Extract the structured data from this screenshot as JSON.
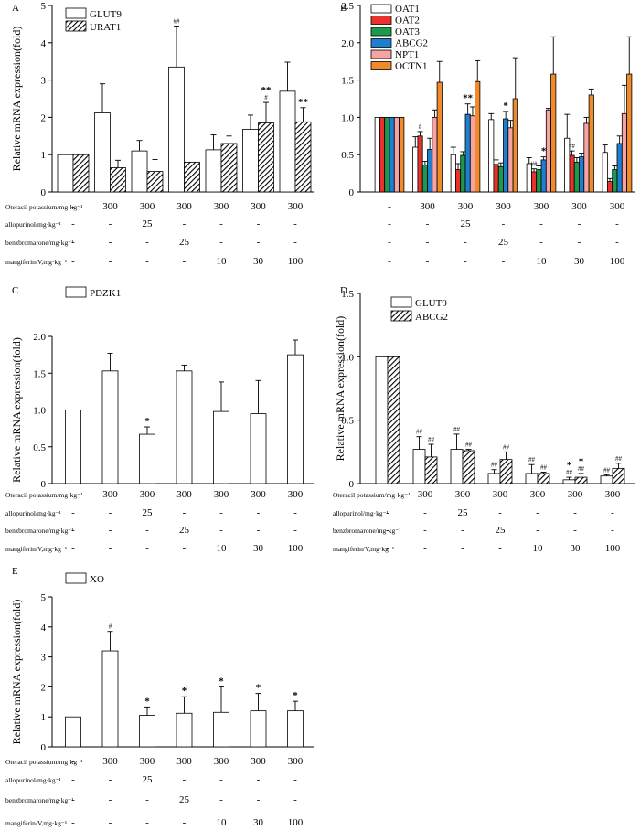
{
  "chart_data": [
    {
      "panel": "A",
      "type": "bar",
      "ylabel": "Relative mRNA expression(fold)",
      "ylim": [
        0,
        5
      ],
      "yticks": [
        "0",
        "1",
        "2",
        "3",
        "4",
        "5"
      ],
      "legend": "top-left",
      "series": [
        {
          "name": "GLUT9",
          "pattern": "open",
          "values": [
            1.0,
            2.12,
            1.1,
            3.35,
            1.13,
            1.68,
            2.7
          ],
          "errors": [
            0,
            0.78,
            0.28,
            1.1,
            0.4,
            0.38,
            0.78
          ],
          "marks": [
            "",
            "",
            "",
            "##",
            "",
            "",
            ""
          ]
        },
        {
          "name": "URAT1",
          "pattern": "hatched",
          "values": [
            1.0,
            0.65,
            0.55,
            0.8,
            1.3,
            1.85,
            1.88
          ],
          "errors": [
            0,
            0.2,
            0.32,
            0,
            0.2,
            0.55,
            0.38
          ],
          "marks": [
            "",
            "",
            "",
            "",
            "",
            "**\n#",
            "**"
          ]
        }
      ],
      "dose_rows": [
        {
          "label": "Oteracil potassium/mg·kg⁻¹",
          "values": [
            "-",
            "300",
            "300",
            "300",
            "300",
            "300",
            "300"
          ]
        },
        {
          "label": "allopurinol/mg·kg⁻¹",
          "values": [
            "-",
            "-",
            "25",
            "-",
            "-",
            "-",
            "-"
          ]
        },
        {
          "label": "benzbromarone/mg·kg⁻¹",
          "values": [
            "-",
            "-",
            "-",
            "25",
            "-",
            "-",
            "-"
          ]
        },
        {
          "label": "mangiferin/V,mg·kg⁻¹",
          "values": [
            "-",
            "-",
            "-",
            "-",
            "10",
            "30",
            "100"
          ]
        }
      ]
    },
    {
      "panel": "B",
      "type": "bar",
      "ylabel": "",
      "ylim": [
        0,
        2.5
      ],
      "yticks": [
        "0",
        "0.5",
        "1.0",
        "1.5",
        "2.0",
        "2.5"
      ],
      "legend": "top-left",
      "series": [
        {
          "name": "OAT1",
          "color": "#ffffff",
          "values": [
            1.0,
            0.6,
            0.5,
            0.97,
            0.38,
            0.72,
            0.53
          ],
          "errors": [
            0,
            0.14,
            0.1,
            0.08,
            0.08,
            0.32,
            0.1
          ],
          "marks": [
            "",
            "",
            "",
            "",
            "",
            "",
            ""
          ]
        },
        {
          "name": "OAT2",
          "color": "#e8322b",
          "values": [
            1.0,
            0.75,
            0.3,
            0.37,
            0.27,
            0.49,
            0.14
          ],
          "errors": [
            0,
            0.06,
            0.08,
            0.06,
            0.04,
            0.06,
            0.04
          ],
          "marks": [
            "",
            "#",
            "",
            "",
            "##",
            "##",
            ""
          ]
        },
        {
          "name": "OAT3",
          "color": "#1a9a4a",
          "values": [
            1.0,
            0.36,
            0.49,
            0.34,
            0.3,
            0.4,
            0.3
          ],
          "errors": [
            0,
            0.05,
            0.05,
            0.05,
            0.05,
            0.06,
            0.05
          ],
          "marks": [
            "",
            "",
            "",
            "",
            "",
            "",
            ""
          ]
        },
        {
          "name": "ABCG2",
          "color": "#1e7fcf",
          "values": [
            1.0,
            0.57,
            1.04,
            0.98,
            0.43,
            0.47,
            0.65
          ],
          "errors": [
            0,
            0.15,
            0.14,
            0.1,
            0.04,
            0.05,
            0.1
          ],
          "marks": [
            "",
            "",
            "**",
            "*",
            "*",
            "",
            ""
          ]
        },
        {
          "name": "NPT1",
          "color": "#f4a4a4",
          "values": [
            1.0,
            1.0,
            1.02,
            0.86,
            1.1,
            0.92,
            1.05
          ],
          "errors": [
            0,
            0.1,
            0.12,
            0.1,
            0.02,
            0.08,
            0.38
          ],
          "marks": [
            "",
            "",
            "",
            "",
            "",
            "",
            ""
          ]
        },
        {
          "name": "OCTN1",
          "color": "#f08a2a",
          "values": [
            1.0,
            1.47,
            1.48,
            1.25,
            1.58,
            1.3,
            1.58
          ],
          "errors": [
            0,
            0.28,
            0.28,
            0.55,
            0.5,
            0.08,
            0.5
          ],
          "marks": [
            "",
            "",
            "",
            "",
            "",
            "",
            ""
          ]
        }
      ],
      "dose_rows": [
        {
          "label": "",
          "values": [
            "-",
            "300",
            "300",
            "300",
            "300",
            "300",
            "300"
          ]
        },
        {
          "label": "",
          "values": [
            "-",
            "-",
            "25",
            "-",
            "-",
            "-",
            "-"
          ]
        },
        {
          "label": "",
          "values": [
            "-",
            "-",
            "-",
            "25",
            "-",
            "-",
            "-"
          ]
        },
        {
          "label": "",
          "values": [
            "-",
            "-",
            "-",
            "-",
            "10",
            "30",
            "100"
          ]
        }
      ]
    },
    {
      "panel": "C",
      "type": "bar",
      "ylabel": "Relative mRNA expression(fold)",
      "ylim": [
        0,
        2.0
      ],
      "yticks": [
        "0",
        "0.5",
        "1.0",
        "1.5",
        "2.0"
      ],
      "legend": "top-left",
      "series": [
        {
          "name": "PDZK1",
          "pattern": "open",
          "values": [
            1.0,
            1.53,
            0.67,
            1.53,
            0.98,
            0.95,
            1.75
          ],
          "errors": [
            0,
            0.24,
            0.1,
            0.08,
            0.4,
            0.45,
            0.2
          ],
          "marks": [
            "",
            "",
            "*",
            "",
            "",
            "",
            ""
          ]
        }
      ],
      "dose_rows": [
        {
          "label": "Oteracil potassium/mg·kg⁻¹",
          "values": [
            "-",
            "300",
            "300",
            "300",
            "300",
            "300",
            "300"
          ]
        },
        {
          "label": "allopurinol/mg·kg⁻¹",
          "values": [
            "-",
            "-",
            "25",
            "-",
            "-",
            "-",
            "-"
          ]
        },
        {
          "label": "benzbromarone/mg·kg⁻¹",
          "values": [
            "-",
            "-",
            "-",
            "25",
            "-",
            "-",
            "-"
          ]
        },
        {
          "label": "mangiferin/V,mg·kg⁻¹",
          "values": [
            "-",
            "-",
            "-",
            "-",
            "10",
            "30",
            "100"
          ]
        }
      ]
    },
    {
      "panel": "D",
      "type": "bar",
      "ylabel": "Relative mRNA expression(fold)",
      "ylim": [
        0,
        1.5
      ],
      "yticks": [
        "0",
        "0.5",
        "1.0",
        "1.5"
      ],
      "legend": "top-left",
      "series": [
        {
          "name": "GLUT9",
          "pattern": "open",
          "values": [
            1.0,
            0.27,
            0.27,
            0.08,
            0.08,
            0.03,
            0.06
          ],
          "errors": [
            0,
            0.1,
            0.12,
            0.03,
            0.07,
            0.02,
            0.01
          ],
          "marks": [
            "",
            "##",
            "##",
            "##",
            "##",
            "*\n##",
            "##"
          ]
        },
        {
          "name": "ABCG2",
          "pattern": "hatched",
          "values": [
            1.0,
            0.21,
            0.26,
            0.19,
            0.08,
            0.05,
            0.12
          ],
          "errors": [
            0,
            0.1,
            0.01,
            0.06,
            0.01,
            0.03,
            0.04
          ],
          "marks": [
            "",
            "##",
            "##",
            "##",
            "##",
            "*\n##",
            "##"
          ]
        }
      ],
      "dose_rows": [
        {
          "label": "Oteracil potassium/mg·kg⁻¹",
          "values": [
            "-",
            "300",
            "300",
            "300",
            "300",
            "300",
            "300"
          ]
        },
        {
          "label": "allopurinol/mg·kg⁻¹",
          "values": [
            "-",
            "-",
            "25",
            "-",
            "-",
            "-",
            "-"
          ]
        },
        {
          "label": "benzbromarone/mg·kg⁻¹",
          "values": [
            "-",
            "-",
            "-",
            "25",
            "-",
            "-",
            "-"
          ]
        },
        {
          "label": "mangiferin/V,mg·kg⁻¹",
          "values": [
            "-",
            "-",
            "-",
            "-",
            "10",
            "30",
            "100"
          ]
        }
      ]
    },
    {
      "panel": "E",
      "type": "bar",
      "ylabel": "Relative mRNA expression(fold)",
      "ylim": [
        0,
        5
      ],
      "yticks": [
        "0",
        "1",
        "2",
        "3",
        "4",
        "5"
      ],
      "legend": "top-left",
      "series": [
        {
          "name": "XO",
          "pattern": "open",
          "values": [
            1.0,
            3.2,
            1.05,
            1.12,
            1.15,
            1.2,
            1.2
          ],
          "errors": [
            0,
            0.65,
            0.28,
            0.55,
            0.85,
            0.58,
            0.32
          ],
          "marks": [
            "",
            "#",
            "*",
            "*",
            "*",
            "*",
            "*"
          ]
        }
      ],
      "dose_rows": [
        {
          "label": "Oteracil potassium/mg·kg⁻¹",
          "values": [
            "-",
            "300",
            "300",
            "300",
            "300",
            "300",
            "300"
          ]
        },
        {
          "label": "allopurinol/mg·kg⁻¹",
          "values": [
            "-",
            "-",
            "25",
            "-",
            "-",
            "-",
            "-"
          ]
        },
        {
          "label": "benzbromarone/mg·kg⁻¹",
          "values": [
            "-",
            "-",
            "-",
            "25",
            "-",
            "-",
            "-"
          ]
        },
        {
          "label": "mangiferin/V,mg·kg⁻¹",
          "values": [
            "-",
            "-",
            "-",
            "-",
            "10",
            "30",
            "100"
          ]
        }
      ]
    }
  ]
}
